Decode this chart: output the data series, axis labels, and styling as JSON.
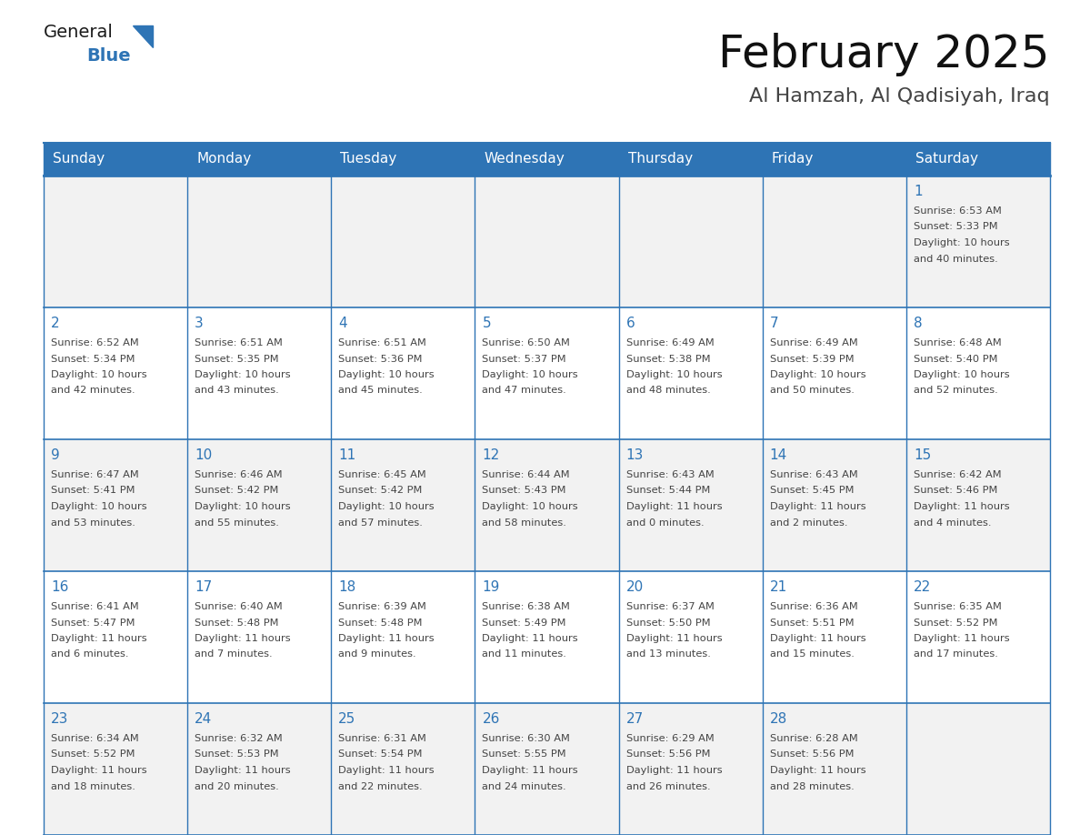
{
  "title": "February 2025",
  "subtitle": "Al Hamzah, Al Qadisiyah, Iraq",
  "header_bg_color": "#2E74B5",
  "header_text_color": "#FFFFFF",
  "bg_color": "#FFFFFF",
  "cell_alt_bg": "#F2F2F2",
  "grid_line_color": "#2E74B5",
  "day_number_color": "#2E74B5",
  "cell_text_color": "#444444",
  "days_of_week": [
    "Sunday",
    "Monday",
    "Tuesday",
    "Wednesday",
    "Thursday",
    "Friday",
    "Saturday"
  ],
  "logo_general_color": "#1a1a1a",
  "logo_blue_color": "#2E74B5",
  "calendar_data": [
    [
      null,
      null,
      null,
      null,
      null,
      null,
      {
        "day": 1,
        "sunrise": "6:53 AM",
        "sunset": "5:33 PM",
        "daylight_hours": 10,
        "daylight_minutes": 40
      }
    ],
    [
      {
        "day": 2,
        "sunrise": "6:52 AM",
        "sunset": "5:34 PM",
        "daylight_hours": 10,
        "daylight_minutes": 42
      },
      {
        "day": 3,
        "sunrise": "6:51 AM",
        "sunset": "5:35 PM",
        "daylight_hours": 10,
        "daylight_minutes": 43
      },
      {
        "day": 4,
        "sunrise": "6:51 AM",
        "sunset": "5:36 PM",
        "daylight_hours": 10,
        "daylight_minutes": 45
      },
      {
        "day": 5,
        "sunrise": "6:50 AM",
        "sunset": "5:37 PM",
        "daylight_hours": 10,
        "daylight_minutes": 47
      },
      {
        "day": 6,
        "sunrise": "6:49 AM",
        "sunset": "5:38 PM",
        "daylight_hours": 10,
        "daylight_minutes": 48
      },
      {
        "day": 7,
        "sunrise": "6:49 AM",
        "sunset": "5:39 PM",
        "daylight_hours": 10,
        "daylight_minutes": 50
      },
      {
        "day": 8,
        "sunrise": "6:48 AM",
        "sunset": "5:40 PM",
        "daylight_hours": 10,
        "daylight_minutes": 52
      }
    ],
    [
      {
        "day": 9,
        "sunrise": "6:47 AM",
        "sunset": "5:41 PM",
        "daylight_hours": 10,
        "daylight_minutes": 53
      },
      {
        "day": 10,
        "sunrise": "6:46 AM",
        "sunset": "5:42 PM",
        "daylight_hours": 10,
        "daylight_minutes": 55
      },
      {
        "day": 11,
        "sunrise": "6:45 AM",
        "sunset": "5:42 PM",
        "daylight_hours": 10,
        "daylight_minutes": 57
      },
      {
        "day": 12,
        "sunrise": "6:44 AM",
        "sunset": "5:43 PM",
        "daylight_hours": 10,
        "daylight_minutes": 58
      },
      {
        "day": 13,
        "sunrise": "6:43 AM",
        "sunset": "5:44 PM",
        "daylight_hours": 11,
        "daylight_minutes": 0
      },
      {
        "day": 14,
        "sunrise": "6:43 AM",
        "sunset": "5:45 PM",
        "daylight_hours": 11,
        "daylight_minutes": 2
      },
      {
        "day": 15,
        "sunrise": "6:42 AM",
        "sunset": "5:46 PM",
        "daylight_hours": 11,
        "daylight_minutes": 4
      }
    ],
    [
      {
        "day": 16,
        "sunrise": "6:41 AM",
        "sunset": "5:47 PM",
        "daylight_hours": 11,
        "daylight_minutes": 6
      },
      {
        "day": 17,
        "sunrise": "6:40 AM",
        "sunset": "5:48 PM",
        "daylight_hours": 11,
        "daylight_minutes": 7
      },
      {
        "day": 18,
        "sunrise": "6:39 AM",
        "sunset": "5:48 PM",
        "daylight_hours": 11,
        "daylight_minutes": 9
      },
      {
        "day": 19,
        "sunrise": "6:38 AM",
        "sunset": "5:49 PM",
        "daylight_hours": 11,
        "daylight_minutes": 11
      },
      {
        "day": 20,
        "sunrise": "6:37 AM",
        "sunset": "5:50 PM",
        "daylight_hours": 11,
        "daylight_minutes": 13
      },
      {
        "day": 21,
        "sunrise": "6:36 AM",
        "sunset": "5:51 PM",
        "daylight_hours": 11,
        "daylight_minutes": 15
      },
      {
        "day": 22,
        "sunrise": "6:35 AM",
        "sunset": "5:52 PM",
        "daylight_hours": 11,
        "daylight_minutes": 17
      }
    ],
    [
      {
        "day": 23,
        "sunrise": "6:34 AM",
        "sunset": "5:52 PM",
        "daylight_hours": 11,
        "daylight_minutes": 18
      },
      {
        "day": 24,
        "sunrise": "6:32 AM",
        "sunset": "5:53 PM",
        "daylight_hours": 11,
        "daylight_minutes": 20
      },
      {
        "day": 25,
        "sunrise": "6:31 AM",
        "sunset": "5:54 PM",
        "daylight_hours": 11,
        "daylight_minutes": 22
      },
      {
        "day": 26,
        "sunrise": "6:30 AM",
        "sunset": "5:55 PM",
        "daylight_hours": 11,
        "daylight_minutes": 24
      },
      {
        "day": 27,
        "sunrise": "6:29 AM",
        "sunset": "5:56 PM",
        "daylight_hours": 11,
        "daylight_minutes": 26
      },
      {
        "day": 28,
        "sunrise": "6:28 AM",
        "sunset": "5:56 PM",
        "daylight_hours": 11,
        "daylight_minutes": 28
      },
      null
    ]
  ]
}
